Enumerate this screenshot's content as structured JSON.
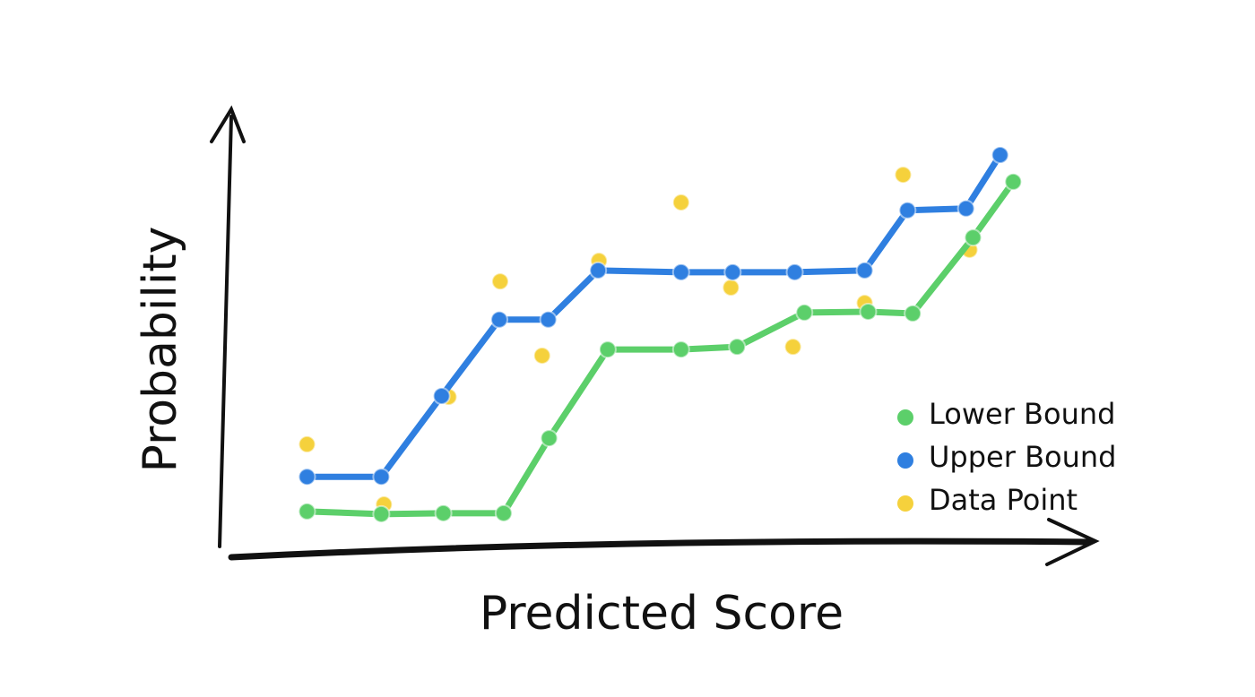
{
  "chart_data": {
    "type": "line",
    "x_label": "Predicted Score",
    "y_label": "Probability",
    "xlim": [
      0,
      100
    ],
    "ylim": [
      0,
      100
    ],
    "legend": "right",
    "series": [
      {
        "name": "Lower Bound",
        "color": "#5ccf6a",
        "x": [
          10,
          18.5,
          25.6,
          32.5,
          37.7,
          44.4,
          52.8,
          59.2,
          66.9,
          74.2,
          79.3,
          86.2,
          90.8
        ],
        "values": [
          9,
          8.4,
          8.6,
          8.6,
          25.7,
          45.9,
          45.9,
          46.5,
          54.3,
          54.5,
          54.1,
          71.4,
          84.1
        ]
      },
      {
        "name": "Upper Bound",
        "color": "#2f7fe0",
        "x": [
          10,
          18.5,
          25.4,
          32,
          37.6,
          43.3,
          52.8,
          58.7,
          65.8,
          73.8,
          78.7,
          85.4,
          89.3
        ],
        "values": [
          16.9,
          16.9,
          35.3,
          52.7,
          52.7,
          63.9,
          63.5,
          63.5,
          63.5,
          63.9,
          77.6,
          78,
          90.2
        ]
      },
      {
        "name": "Data Point",
        "color": "#f5d13c",
        "type": "scatter",
        "x": [
          10,
          18.8,
          26.2,
          32.1,
          36.9,
          43.4,
          52.8,
          58.5,
          65.6,
          73.8,
          78.2,
          85.8
        ],
        "values": [
          24.3,
          10.6,
          35.1,
          61.4,
          44.5,
          66.1,
          79.4,
          60,
          46.5,
          56.5,
          85.7,
          68.6
        ]
      }
    ]
  }
}
